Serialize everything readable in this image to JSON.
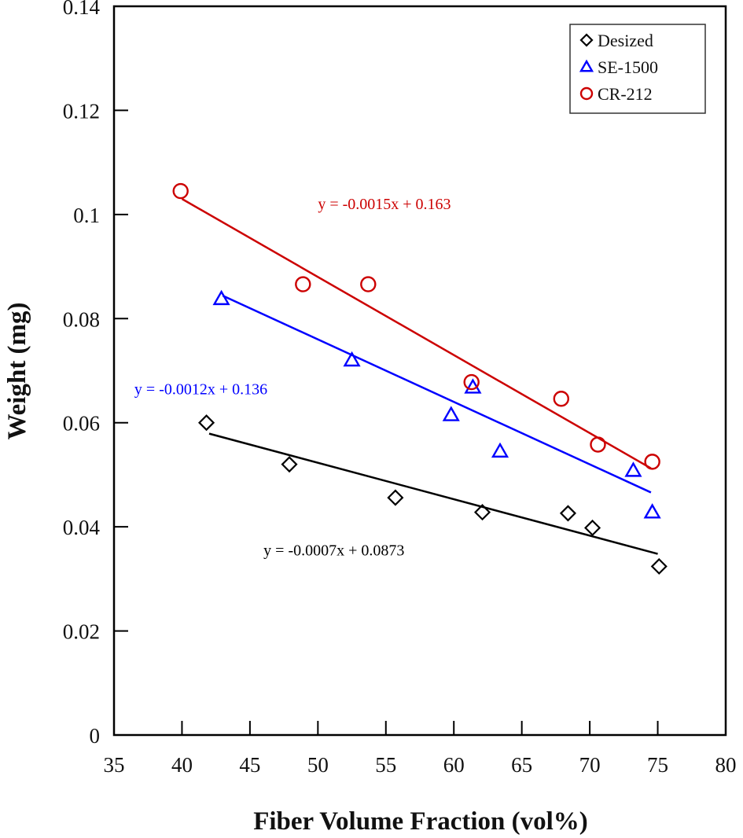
{
  "chart_data": {
    "type": "scatter",
    "title": "",
    "xlabel": "Fiber Volume Fraction (vol%)",
    "ylabel": "Weight (mg)",
    "xlim": [
      35,
      80
    ],
    "ylim": [
      0,
      0.14
    ],
    "xticks": [
      35,
      40,
      45,
      50,
      55,
      60,
      65,
      70,
      75,
      80
    ],
    "yticks": [
      0,
      0.02,
      0.04,
      0.06,
      0.08,
      0.1,
      0.12,
      0.14
    ],
    "xtick_labels": [
      "35",
      "40",
      "45",
      "50",
      "55",
      "60",
      "65",
      "70",
      "75",
      "80"
    ],
    "ytick_labels": [
      "0",
      "0.02",
      "0.04",
      "0.06",
      "0.08",
      "0.1",
      "0.12",
      "0.14"
    ],
    "grid": false,
    "legend_position": "top-right",
    "series": [
      {
        "name": "Desized",
        "marker": "diamond",
        "color": "#000000",
        "x": [
          41.8,
          47.9,
          55.7,
          62.1,
          68.4,
          70.2,
          75.1
        ],
        "y": [
          0.06,
          0.052,
          0.0456,
          0.0428,
          0.0426,
          0.0398,
          0.0324
        ],
        "fit": {
          "slope": -0.0007,
          "intercept": 0.0873,
          "x_range": [
            42,
            75
          ],
          "label": "y = -0.0007x + 0.0873"
        }
      },
      {
        "name": "SE-1500",
        "marker": "triangle",
        "color": "#0000ff",
        "x": [
          42.9,
          52.5,
          59.8,
          61.4,
          63.4,
          73.2,
          74.6
        ],
        "y": [
          0.0838,
          0.072,
          0.0615,
          0.0668,
          0.0545,
          0.0508,
          0.0428
        ],
        "fit": {
          "slope": -0.0012,
          "intercept": 0.136,
          "x_range": [
            43,
            74.5
          ],
          "label": "y = -0.0012x + 0.136"
        }
      },
      {
        "name": "CR-212",
        "marker": "circle",
        "color": "#cc0000",
        "x": [
          39.9,
          48.9,
          53.7,
          61.3,
          67.9,
          70.6,
          74.6
        ],
        "y": [
          0.1045,
          0.0866,
          0.0866,
          0.0678,
          0.0646,
          0.0558,
          0.0525
        ],
        "fit": {
          "slope": -0.0015,
          "intercept": 0.163,
          "x_range": [
            40,
            74.5
          ],
          "label": "y = -0.0015x + 0.163"
        }
      }
    ],
    "annotations": [
      {
        "series": "CR-212",
        "text": "y = -0.0015x + 0.163",
        "at": [
          50,
          0.101
        ]
      },
      {
        "series": "SE-1500",
        "text": "y = -0.0012x + 0.136",
        "at": [
          36.5,
          0.0655
        ]
      },
      {
        "series": "Desized",
        "text": "y = -0.0007x + 0.0873",
        "at": [
          46,
          0.0345
        ]
      }
    ]
  }
}
